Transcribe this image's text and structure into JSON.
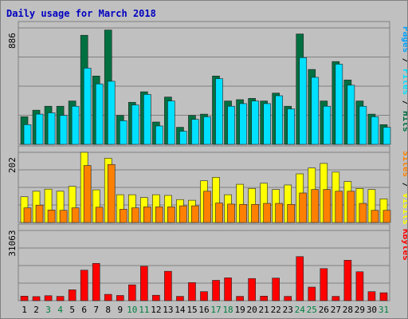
{
  "chart_data": {
    "type": "bar",
    "title": "Daily usage for March 2018",
    "categories": [
      "1",
      "2",
      "3",
      "4",
      "5",
      "6",
      "7",
      "8",
      "9",
      "10",
      "11",
      "12",
      "13",
      "14",
      "15",
      "16",
      "17",
      "18",
      "19",
      "20",
      "21",
      "22",
      "23",
      "24",
      "25",
      "26",
      "27",
      "28",
      "29",
      "30",
      "31"
    ],
    "weekend_days": [
      "3",
      "4",
      "10",
      "11",
      "17",
      "18",
      "24",
      "25",
      "31"
    ],
    "panels": [
      {
        "max_label": "886",
        "ymax": 886,
        "right_label": [
          "Hits",
          "Files",
          "Pages"
        ],
        "series": [
          {
            "name": "Hits",
            "color": "#007040",
            "values": [
              210,
              260,
              290,
              290,
              330,
              830,
              520,
              870,
              220,
              320,
              400,
              170,
              360,
              130,
              220,
              230,
              520,
              330,
              340,
              350,
              330,
              390,
              290,
              840,
              570,
              330,
              630,
              490,
              330,
              230,
              150
            ]
          },
          {
            "name": "Files",
            "color": "#00e0ff",
            "values": [
              150,
              230,
              240,
              220,
              290,
              580,
              460,
              480,
              180,
              300,
              380,
              140,
              330,
              100,
              190,
              210,
              500,
              290,
              310,
              330,
              310,
              370,
              270,
              660,
              510,
              290,
              610,
              450,
              290,
              210,
              130
            ]
          },
          {
            "name": "Pages",
            "color": "#00a0ff",
            "values": []
          }
        ]
      },
      {
        "max_label": "202",
        "ymax": 202,
        "right_label": [
          "Visits",
          "Sites"
        ],
        "series": [
          {
            "name": "Visits",
            "color": "#ffff00",
            "values": [
              74,
              90,
              96,
              90,
              104,
              202,
              94,
              185,
              80,
              80,
              72,
              80,
              78,
              66,
              64,
              120,
              130,
              80,
              110,
              98,
              113,
              95,
              108,
              140,
              157,
              170,
              145,
              118,
              98,
              95,
              68
            ]
          },
          {
            "name": "Sites",
            "color": "#ff8000",
            "values": [
              42,
              50,
              36,
              35,
              42,
              164,
              44,
              167,
              38,
              42,
              45,
              45,
              45,
              48,
              48,
              90,
              56,
              53,
              52,
              52,
              55,
              55,
              52,
              85,
              95,
              95,
              90,
              90,
              55,
              35,
              35
            ]
          }
        ]
      },
      {
        "max_label": "31063",
        "ymax": 31063,
        "right_label": [
          "KBytes"
        ],
        "series": [
          {
            "name": "KBytes",
            "color": "#ff0000",
            "values": [
              2000,
              1800,
              2200,
              1900,
              4800,
              13500,
              16500,
              2800,
              2300,
              7000,
              15200,
              2400,
              13000,
              1900,
              8000,
              4000,
              9000,
              10100,
              1900,
              9800,
              2000,
              10000,
              1900,
              19500,
              6000,
              14200,
              1900,
              17900,
              12800,
              4000,
              3500
            ]
          }
        ]
      }
    ]
  }
}
